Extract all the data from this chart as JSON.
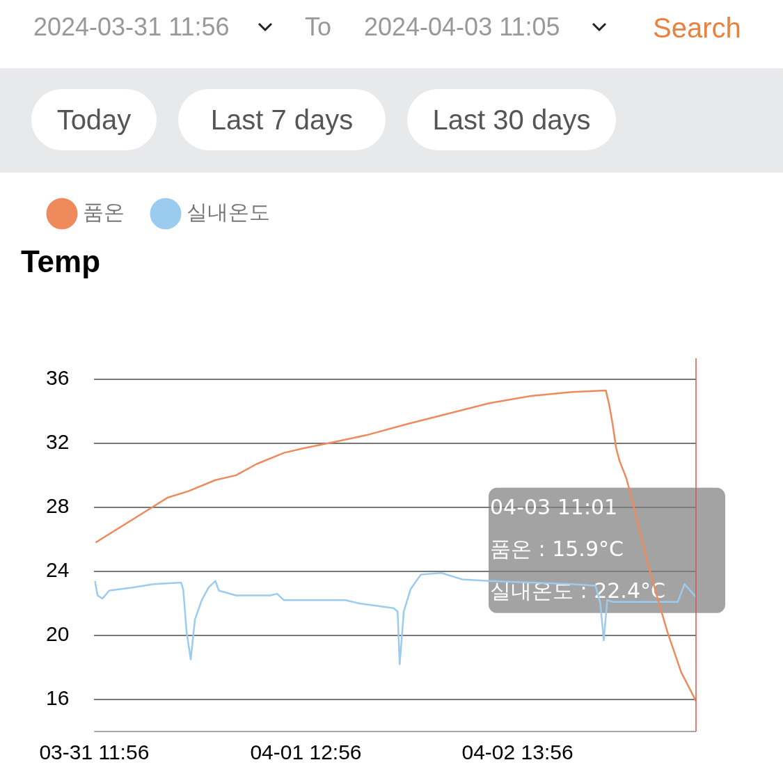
{
  "chart_data": {
    "type": "line",
    "title": "Temp",
    "annotations": [
      "2024-03-31 11:56",
      "To",
      "2024-04-03 11:05",
      "Search",
      "Today",
      "Last 7 days",
      "Last 30 days",
      "04-03 11:01",
      "품온 : 15.9°C",
      "실내온도 : 22.4°C"
    ],
    "series": [
      {
        "name": "품온",
        "color": "#ef8a5d",
        "x": [
          "2024-03-31T12:06",
          "2024-03-31T18:10",
          "2024-03-31T20:35",
          "2024-03-31T23:01",
          "2024-04-01T02:15",
          "2024-04-01T04:41",
          "2024-04-01T07:06",
          "2024-04-01T10:21",
          "2024-04-01T12:46",
          "2024-04-01T16:00",
          "2024-04-01T20:03",
          "2024-04-02T00:54",
          "2024-04-02T05:46",
          "2024-04-02T10:37",
          "2024-04-02T15:28",
          "2024-04-02T20:19",
          "2024-04-03T00:22",
          "2024-04-03T00:46",
          "2024-04-03T01:10",
          "2024-04-03T01:35",
          "2024-04-03T01:59",
          "2024-04-03T02:48",
          "2024-04-03T03:36",
          "2024-04-03T04:25",
          "2024-04-03T05:13",
          "2024-04-03T06:26",
          "2024-04-03T07:39",
          "2024-04-03T09:16",
          "2024-04-03T11:01"
        ],
        "values": [
          25.8,
          27.8,
          28.6,
          29.0,
          29.7,
          30.0,
          30.7,
          31.4,
          31.7,
          32.05,
          32.5,
          33.2,
          33.85,
          34.5,
          34.95,
          35.2,
          35.3,
          34.4,
          33.2,
          31.7,
          30.9,
          29.8,
          28.2,
          26.4,
          24.7,
          22.4,
          20.2,
          17.7,
          15.9
        ]
      },
      {
        "name": "실내온도",
        "color": "#9ccbf0",
        "x": [
          "2024-03-31T12:01",
          "2024-03-31T12:20",
          "2024-03-31T12:54",
          "2024-03-31T13:43",
          "2024-03-31T16:33",
          "2024-03-31T18:58",
          "2024-03-31T22:12",
          "2024-03-31T22:27",
          "2024-03-31T22:51",
          "2024-03-31T23:20",
          "2024-03-31T23:50",
          "2024-04-01T00:38",
          "2024-04-01T01:27",
          "2024-04-01T02:15",
          "2024-04-01T02:39",
          "2024-04-01T04:41",
          "2024-04-01T08:43",
          "2024-04-01T09:32",
          "2024-04-01T10:21",
          "2024-04-01T14:23",
          "2024-04-01T17:37",
          "2024-04-01T19:14",
          "2024-04-01T23:17",
          "2024-04-01T23:46",
          "2024-04-02T00:01",
          "2024-04-02T00:30",
          "2024-04-02T01:19",
          "2024-04-02T02:31",
          "2024-04-02T04:57",
          "2024-04-02T07:23",
          "2024-04-02T10:37",
          "2024-04-02T15:28",
          "2024-04-02T20:19",
          "2024-04-02T23:09",
          "2024-04-02T23:43",
          "2024-04-03T00:07",
          "2024-04-03T00:32",
          "2024-04-03T01:10",
          "2024-04-03T06:50",
          "2024-04-03T08:52",
          "2024-04-03T09:40",
          "2024-04-03T11:01"
        ],
        "values": [
          23.4,
          22.5,
          22.3,
          22.8,
          23.0,
          23.2,
          23.3,
          22.85,
          20.2,
          18.5,
          21.0,
          22.2,
          23.0,
          23.4,
          22.8,
          22.5,
          22.5,
          22.6,
          22.2,
          22.2,
          22.2,
          22.0,
          21.7,
          21.5,
          18.2,
          21.5,
          22.9,
          23.8,
          23.9,
          23.5,
          23.4,
          23.3,
          23.2,
          23.1,
          22.0,
          19.7,
          22.2,
          22.1,
          22.1,
          22.1,
          23.2,
          22.4
        ]
      }
    ],
    "xlim": [
      "2024-03-31T11:56",
      "2024-04-03T11:01"
    ],
    "xticks": [
      {
        "value": "2024-03-31T11:56",
        "label": "03-31 11:56"
      },
      {
        "value": "2024-04-01T12:56",
        "label": "04-01 12:56"
      },
      {
        "value": "2024-04-02T13:56",
        "label": "04-02 13:56"
      }
    ],
    "ylim": [
      14,
      36
    ],
    "yticks": [
      16,
      20,
      24,
      28,
      32,
      36
    ],
    "ref_lines": [
      {
        "axis": "x",
        "value": "2024-04-03T11:01",
        "color": "#d9534f"
      }
    ],
    "grid": "y",
    "legend": "top left",
    "marker": "none",
    "line_style": "solid"
  }
}
